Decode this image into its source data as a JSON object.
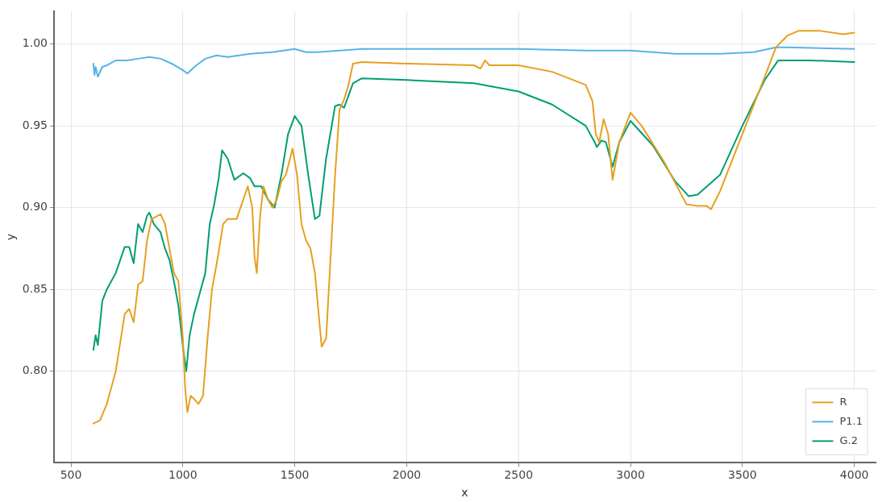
{
  "chart_data": {
    "type": "line",
    "xlabel": "x",
    "ylabel": "y",
    "xlim": [
      424,
      4095
    ],
    "ylim": [
      0.744,
      1.02
    ],
    "xticks": [
      500,
      1000,
      1500,
      2000,
      2500,
      3000,
      3500,
      4000
    ],
    "yticks": [
      {
        "value": 0.8,
        "label": "0.80"
      },
      0.85,
      {
        "value": 0.9,
        "label": "0.90"
      },
      0.95,
      {
        "value": 1.0,
        "label": "1.00"
      }
    ],
    "grid": true,
    "legend": "bottom right",
    "marker": "none",
    "line_style": "solid",
    "series": [
      {
        "name": "R",
        "color": "#e6a020",
        "x": [
          600,
          630,
          660,
          700,
          740,
          760,
          780,
          800,
          820,
          840,
          860,
          900,
          920,
          940,
          960,
          980,
          1000,
          1010,
          1020,
          1035,
          1050,
          1070,
          1090,
          1110,
          1130,
          1150,
          1180,
          1200,
          1240,
          1270,
          1290,
          1310,
          1320,
          1330,
          1345,
          1360,
          1380,
          1400,
          1420,
          1440,
          1460,
          1490,
          1510,
          1530,
          1550,
          1570,
          1590,
          1620,
          1640,
          1660,
          1680,
          1700,
          1720,
          1740,
          1760,
          1800,
          2000,
          2300,
          2330,
          2350,
          2370,
          2500,
          2650,
          2800,
          2830,
          2845,
          2860,
          2880,
          2900,
          2920,
          2950,
          3000,
          3050,
          3150,
          3250,
          3300,
          3340,
          3360,
          3400,
          3500,
          3600,
          3650,
          3700,
          3750,
          3850,
          3950,
          4000
        ],
        "values": [
          0.768,
          0.77,
          0.78,
          0.8,
          0.835,
          0.838,
          0.83,
          0.853,
          0.855,
          0.88,
          0.893,
          0.896,
          0.89,
          0.875,
          0.86,
          0.855,
          0.82,
          0.79,
          0.775,
          0.785,
          0.783,
          0.78,
          0.785,
          0.82,
          0.85,
          0.865,
          0.89,
          0.893,
          0.893,
          0.905,
          0.913,
          0.9,
          0.87,
          0.86,
          0.895,
          0.913,
          0.905,
          0.9,
          0.905,
          0.916,
          0.92,
          0.936,
          0.92,
          0.89,
          0.88,
          0.875,
          0.86,
          0.815,
          0.82,
          0.87,
          0.92,
          0.96,
          0.966,
          0.975,
          0.988,
          0.989,
          0.988,
          0.987,
          0.985,
          0.99,
          0.987,
          0.987,
          0.983,
          0.975,
          0.965,
          0.945,
          0.94,
          0.954,
          0.945,
          0.917,
          0.94,
          0.958,
          0.95,
          0.928,
          0.902,
          0.901,
          0.901,
          0.899,
          0.91,
          0.945,
          0.98,
          0.998,
          1.005,
          1.008,
          1.008,
          1.006,
          1.007
        ]
      },
      {
        "name": "P1.1",
        "color": "#56b4e9",
        "x": [
          600,
          605,
          610,
          620,
          640,
          660,
          700,
          750,
          800,
          850,
          900,
          950,
          1000,
          1020,
          1060,
          1100,
          1150,
          1200,
          1300,
          1400,
          1500,
          1550,
          1600,
          1700,
          1800,
          2000,
          2500,
          2800,
          3000,
          3200,
          3400,
          3550,
          3650,
          3700,
          4000
        ],
        "values": [
          0.988,
          0.981,
          0.986,
          0.98,
          0.986,
          0.987,
          0.99,
          0.99,
          0.991,
          0.992,
          0.991,
          0.988,
          0.984,
          0.982,
          0.987,
          0.991,
          0.993,
          0.992,
          0.994,
          0.995,
          0.997,
          0.995,
          0.995,
          0.996,
          0.997,
          0.997,
          0.997,
          0.996,
          0.996,
          0.994,
          0.994,
          0.995,
          0.998,
          0.998,
          0.997
        ]
      },
      {
        "name": "G.2",
        "color": "#009e73",
        "x": [
          600,
          610,
          620,
          640,
          660,
          680,
          700,
          720,
          740,
          760,
          780,
          800,
          820,
          840,
          850,
          870,
          900,
          920,
          940,
          960,
          980,
          1000,
          1015,
          1030,
          1050,
          1080,
          1100,
          1120,
          1140,
          1160,
          1175,
          1200,
          1230,
          1270,
          1300,
          1320,
          1350,
          1380,
          1410,
          1440,
          1470,
          1500,
          1530,
          1560,
          1590,
          1610,
          1640,
          1680,
          1700,
          1720,
          1760,
          1800,
          2000,
          2300,
          2500,
          2650,
          2800,
          2840,
          2850,
          2870,
          2890,
          2920,
          2950,
          3000,
          3100,
          3200,
          3260,
          3300,
          3400,
          3500,
          3600,
          3660,
          3800,
          4000
        ],
        "values": [
          0.813,
          0.822,
          0.816,
          0.843,
          0.85,
          0.855,
          0.86,
          0.868,
          0.876,
          0.876,
          0.866,
          0.89,
          0.885,
          0.895,
          0.897,
          0.89,
          0.885,
          0.875,
          0.868,
          0.855,
          0.84,
          0.815,
          0.8,
          0.822,
          0.835,
          0.85,
          0.86,
          0.89,
          0.902,
          0.918,
          0.935,
          0.93,
          0.917,
          0.921,
          0.918,
          0.913,
          0.913,
          0.905,
          0.9,
          0.92,
          0.945,
          0.956,
          0.95,
          0.92,
          0.893,
          0.895,
          0.93,
          0.962,
          0.963,
          0.961,
          0.976,
          0.979,
          0.978,
          0.976,
          0.971,
          0.963,
          0.95,
          0.94,
          0.937,
          0.941,
          0.94,
          0.925,
          0.94,
          0.953,
          0.938,
          0.916,
          0.907,
          0.908,
          0.92,
          0.95,
          0.978,
          0.99,
          0.99,
          0.989
        ]
      }
    ]
  }
}
